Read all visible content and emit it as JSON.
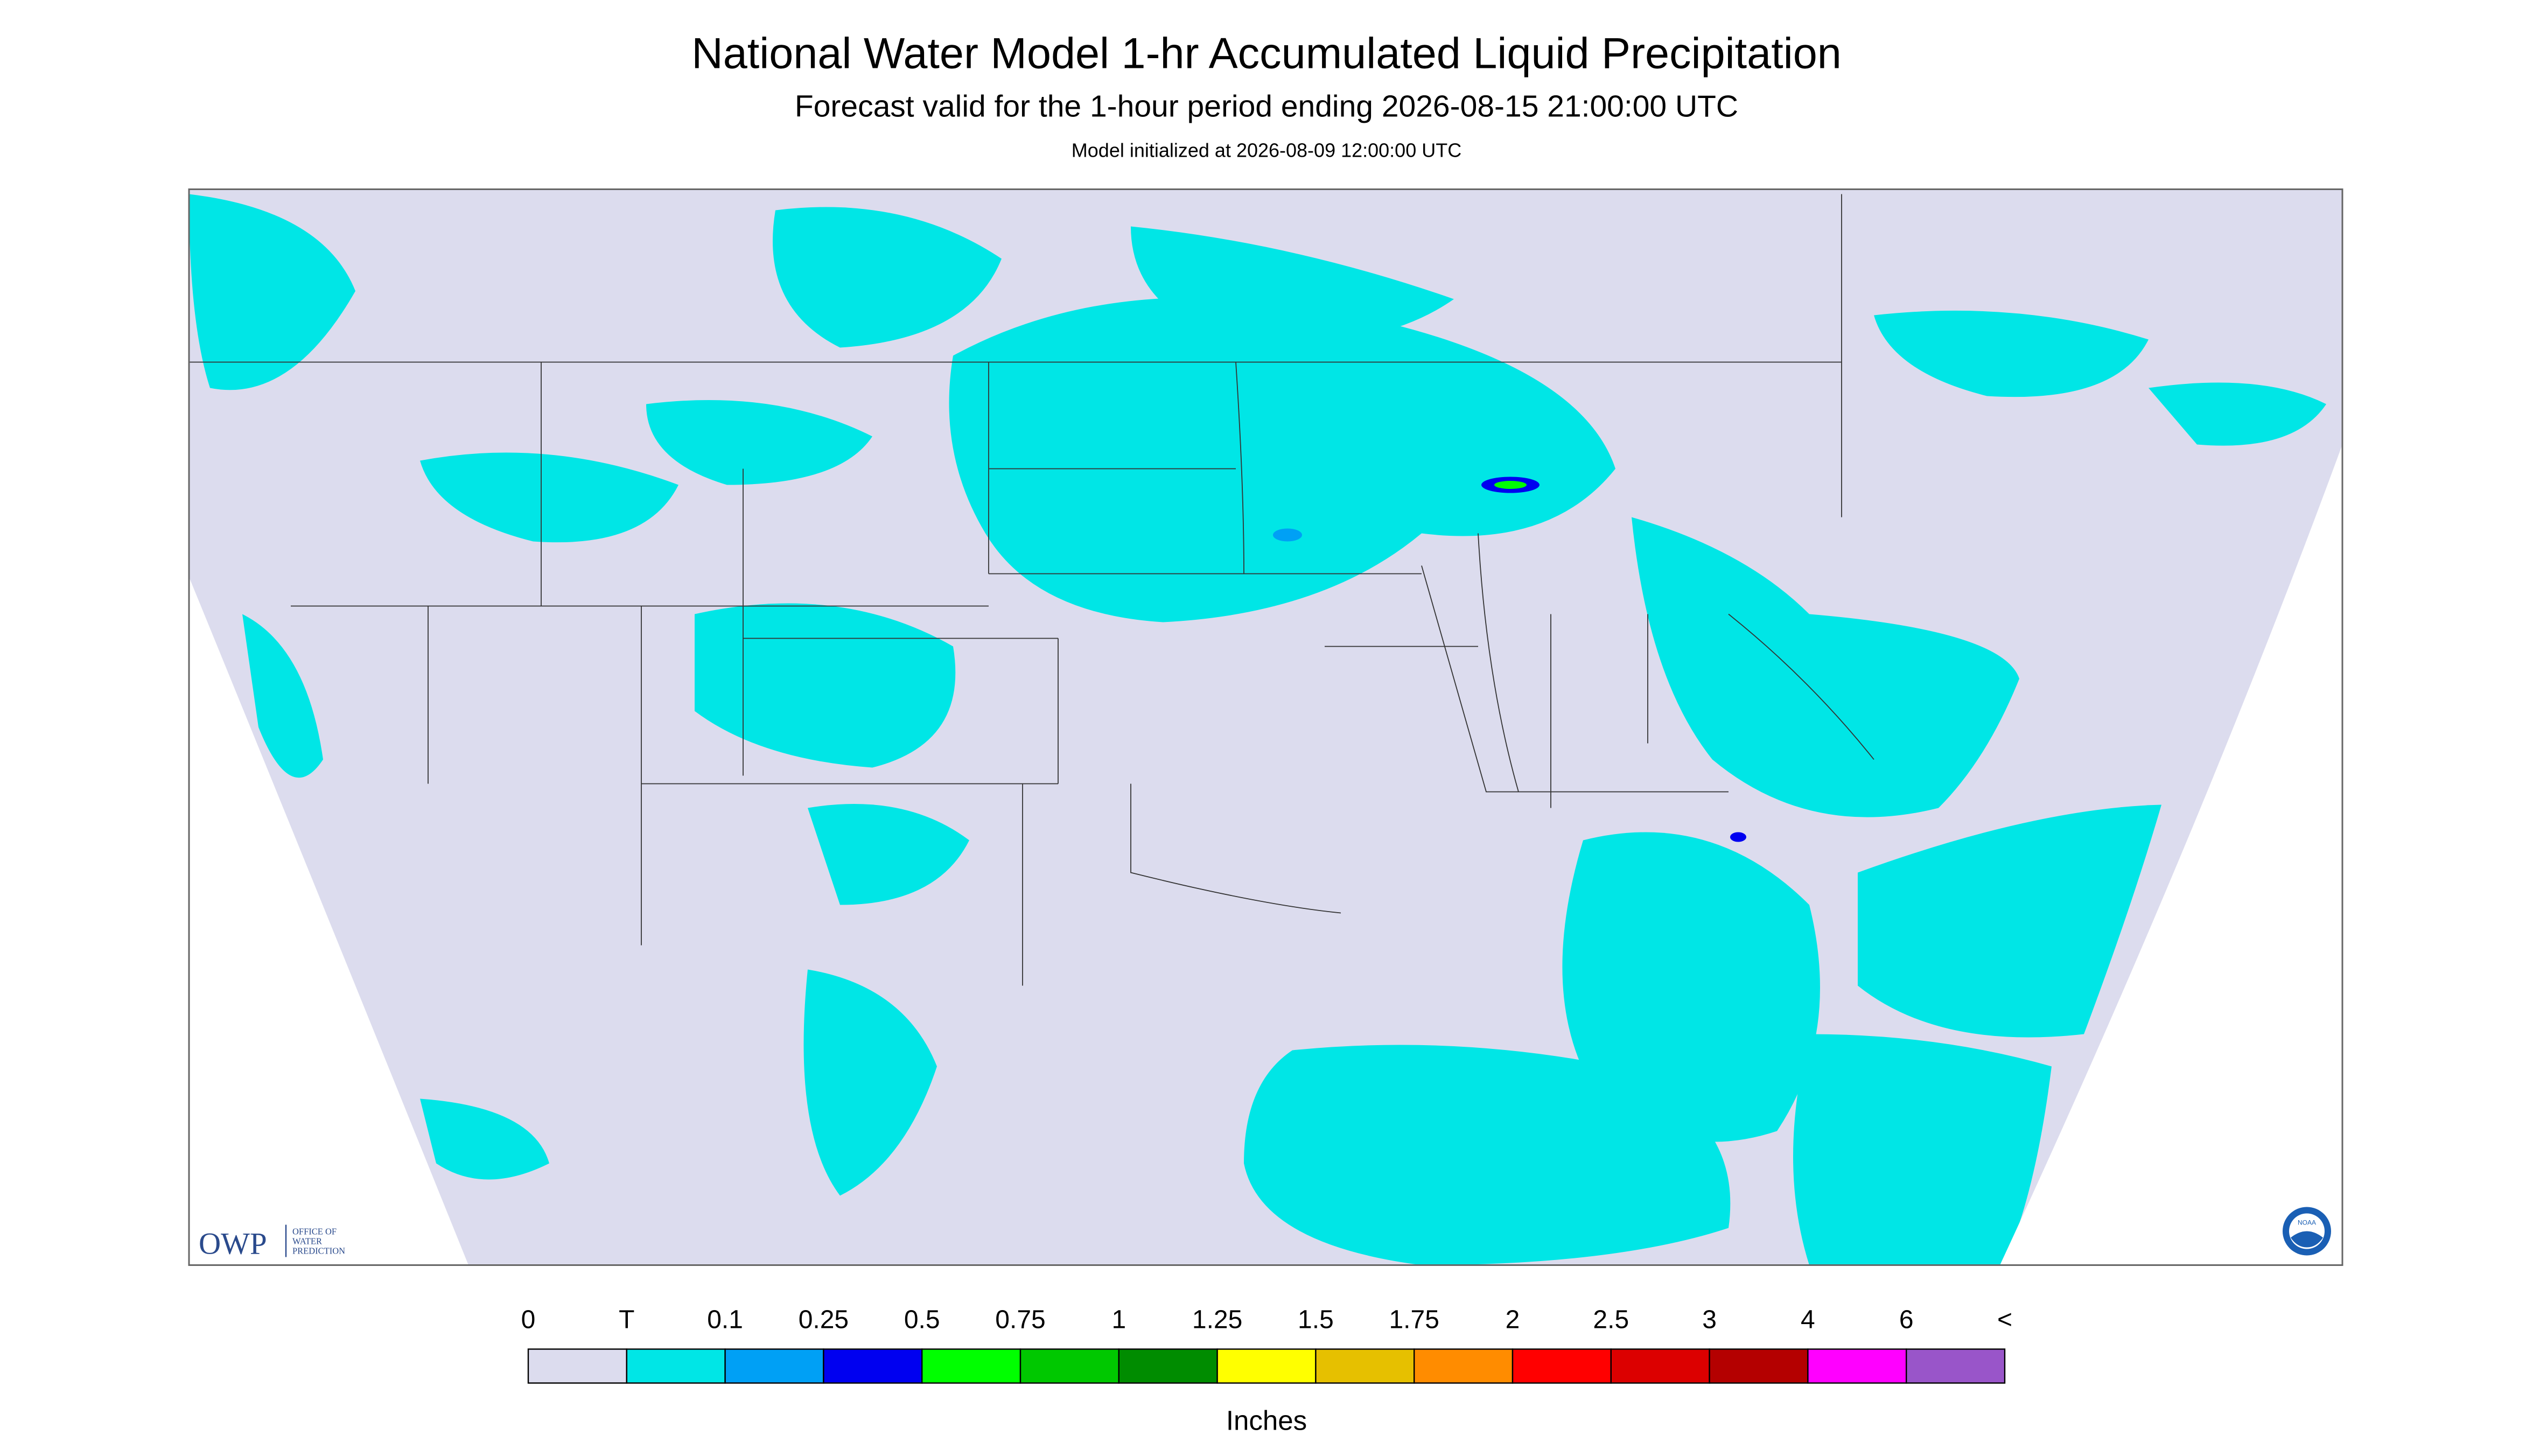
{
  "header": {
    "title": "National Water Model 1-hr Accumulated Liquid Precipitation",
    "subtitle": "Forecast valid for the 1-hour period ending 2026-08-15 21:00:00 UTC",
    "init": "Model initialized at 2026-08-09 12:00:00 UTC"
  },
  "legend": {
    "labels": [
      "0",
      "T",
      "0.1",
      "0.25",
      "0.5",
      "0.75",
      "1",
      "1.25",
      "1.5",
      "1.75",
      "2",
      "2.5",
      "3",
      "4",
      "6",
      "<"
    ],
    "colors": [
      "#dcdcee",
      "#00e6e6",
      "#00a0f5",
      "#0000f0",
      "#00ff00",
      "#00c800",
      "#008c00",
      "#ffff00",
      "#e6c000",
      "#ff8c00",
      "#ff0000",
      "#dc0000",
      "#b40000",
      "#ff00ff",
      "#9955c9"
    ],
    "unit": "Inches"
  },
  "logos": {
    "owp": "OWP",
    "owp_lines": [
      "OFFICE OF",
      "WATER",
      "PREDICTION"
    ],
    "noaa": "NOAA"
  }
}
